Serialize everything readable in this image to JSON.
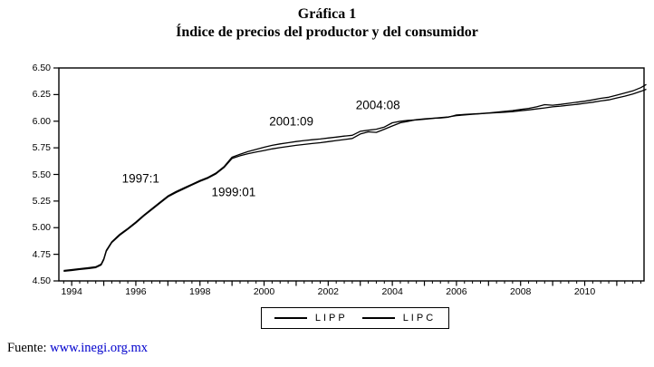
{
  "header": {
    "title": "Gráfica 1",
    "subtitle": "Índice de precios del productor y del consumidor"
  },
  "footer": {
    "prefix": "Fuente:",
    "link_text": "www.inegi.org.mx",
    "link_color": "#0000cd"
  },
  "colors": {
    "line": "#000000",
    "background": "#ffffff"
  },
  "chart_data": {
    "type": "line",
    "title": "Gráfica 1",
    "subtitle": "Índice de precios del productor y del consumidor",
    "xlabel": "",
    "ylabel": "",
    "xlim": [
      1993.6,
      2011.85
    ],
    "ylim": [
      4.5,
      6.5
    ],
    "grid": false,
    "legend_position": "bottom",
    "y_ticks": [
      "4.50",
      "4.75",
      "5.00",
      "5.25",
      "5.50",
      "5.75",
      "6.00",
      "6.25",
      "6.50"
    ],
    "x_tick_labels": [
      "1994",
      "1996",
      "1998",
      "2000",
      "2002",
      "2004",
      "2006",
      "2008",
      "2010"
    ],
    "annotations": [
      {
        "label": "1997:1",
        "x": 1996.15,
        "y": 5.46
      },
      {
        "label": "1999:01",
        "x": 1999.05,
        "y": 5.33
      },
      {
        "label": "2001:09",
        "x": 2000.85,
        "y": 6.0
      },
      {
        "label": "2004:08",
        "x": 2003.55,
        "y": 6.15
      }
    ],
    "x": [
      1993.75,
      1994.0,
      1994.25,
      1994.5,
      1994.75,
      1994.92,
      1995.0,
      1995.08,
      1995.25,
      1995.5,
      1995.75,
      1996.0,
      1996.25,
      1996.5,
      1996.75,
      1997.0,
      1997.25,
      1997.5,
      1997.75,
      1998.0,
      1998.25,
      1998.5,
      1998.75,
      1999.0,
      1999.25,
      1999.5,
      1999.75,
      2000.0,
      2000.25,
      2000.5,
      2000.75,
      2001.0,
      2001.25,
      2001.5,
      2001.75,
      2002.0,
      2002.25,
      2002.5,
      2002.75,
      2003.0,
      2003.25,
      2003.5,
      2003.75,
      2004.0,
      2004.25,
      2004.5,
      2004.75,
      2005.0,
      2005.25,
      2005.5,
      2005.75,
      2006.0,
      2006.25,
      2006.5,
      2006.75,
      2007.0,
      2007.25,
      2007.5,
      2007.75,
      2008.0,
      2008.25,
      2008.5,
      2008.75,
      2009.0,
      2009.25,
      2009.5,
      2009.75,
      2010.0,
      2010.25,
      2010.5,
      2010.75,
      2011.0,
      2011.25,
      2011.5,
      2011.75,
      2011.92
    ],
    "series": [
      {
        "name": "LIPP",
        "values": [
          4.59,
          4.598,
          4.607,
          4.615,
          4.625,
          4.65,
          4.7,
          4.78,
          4.86,
          4.93,
          4.985,
          5.045,
          5.11,
          5.17,
          5.23,
          5.29,
          5.33,
          5.365,
          5.4,
          5.435,
          5.465,
          5.505,
          5.565,
          5.65,
          5.675,
          5.695,
          5.71,
          5.725,
          5.74,
          5.752,
          5.763,
          5.773,
          5.782,
          5.79,
          5.798,
          5.808,
          5.818,
          5.828,
          5.838,
          5.88,
          5.9,
          5.895,
          5.925,
          5.955,
          5.985,
          6.0,
          6.015,
          6.022,
          6.028,
          6.03,
          6.038,
          6.058,
          6.063,
          6.068,
          6.072,
          6.078,
          6.085,
          6.092,
          6.1,
          6.11,
          6.12,
          6.135,
          6.155,
          6.15,
          6.158,
          6.168,
          6.178,
          6.188,
          6.2,
          6.215,
          6.225,
          6.245,
          6.265,
          6.285,
          6.315,
          6.345
        ]
      },
      {
        "name": "LIPC",
        "values": [
          4.598,
          4.606,
          4.615,
          4.623,
          4.633,
          4.658,
          4.708,
          4.788,
          4.868,
          4.938,
          4.993,
          5.053,
          5.118,
          5.178,
          5.238,
          5.298,
          5.338,
          5.373,
          5.408,
          5.443,
          5.473,
          5.513,
          5.573,
          5.662,
          5.69,
          5.715,
          5.735,
          5.755,
          5.773,
          5.787,
          5.798,
          5.809,
          5.818,
          5.826,
          5.833,
          5.842,
          5.851,
          5.86,
          5.868,
          5.905,
          5.915,
          5.925,
          5.945,
          5.985,
          6.0,
          6.008,
          6.012,
          6.018,
          6.026,
          6.034,
          6.04,
          6.052,
          6.058,
          6.065,
          6.07,
          6.075,
          6.08,
          6.085,
          6.09,
          6.098,
          6.106,
          6.115,
          6.125,
          6.135,
          6.142,
          6.15,
          6.158,
          6.168,
          6.178,
          6.19,
          6.2,
          6.218,
          6.235,
          6.255,
          6.28,
          6.3
        ]
      }
    ]
  }
}
